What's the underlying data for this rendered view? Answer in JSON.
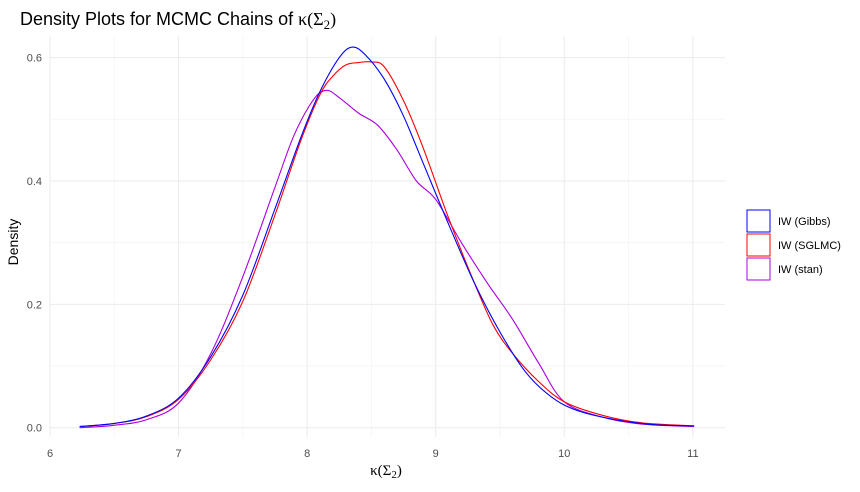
{
  "chart_data": {
    "type": "line",
    "title": {
      "prefix": "Density Plots for MCMC Chains of ",
      "symbol": "κ",
      "open": "(",
      "sigma": "Σ",
      "sub": "2",
      "close": ")"
    },
    "xlabel": {
      "symbol": "κ",
      "open": "(",
      "sigma": "Σ",
      "sub": "2",
      "close": ")"
    },
    "ylabel": "Density",
    "xlim": [
      6,
      11.25
    ],
    "ylim": [
      -0.015,
      0.635
    ],
    "x_ticks": [
      "6",
      "7",
      "8",
      "9",
      "10",
      "11"
    ],
    "x_tick_values": [
      6,
      7,
      8,
      9,
      10,
      11
    ],
    "y_ticks": [
      "0.0",
      "0.2",
      "0.4",
      "0.6"
    ],
    "y_tick_values": [
      0,
      0.2,
      0.4,
      0.6
    ],
    "grid": true,
    "legend_position": "right",
    "series": [
      {
        "name": "IW (Gibbs)",
        "color": "#0000ff",
        "x": [
          6.23,
          6.5,
          6.75,
          7.0,
          7.25,
          7.5,
          7.75,
          7.95,
          8.1,
          8.25,
          8.35,
          8.45,
          8.6,
          8.75,
          8.9,
          9.1,
          9.3,
          9.5,
          9.7,
          9.9,
          10.1,
          10.4,
          10.7,
          11.01
        ],
        "y": [
          0.002,
          0.007,
          0.019,
          0.048,
          0.115,
          0.215,
          0.355,
          0.47,
          0.545,
          0.6,
          0.617,
          0.605,
          0.565,
          0.505,
          0.43,
          0.33,
          0.235,
          0.155,
          0.09,
          0.05,
          0.028,
          0.013,
          0.005,
          0.003
        ]
      },
      {
        "name": "IW (SGLMC)",
        "color": "#ff0000",
        "x": [
          6.23,
          6.5,
          6.75,
          7.0,
          7.25,
          7.5,
          7.75,
          7.95,
          8.1,
          8.2,
          8.3,
          8.4,
          8.5,
          8.6,
          8.75,
          8.9,
          9.1,
          9.3,
          9.45,
          9.6,
          9.8,
          10.0,
          10.3,
          10.6,
          11.01
        ],
        "y": [
          0.002,
          0.007,
          0.018,
          0.046,
          0.11,
          0.205,
          0.345,
          0.465,
          0.54,
          0.57,
          0.588,
          0.592,
          0.593,
          0.585,
          0.53,
          0.455,
          0.34,
          0.235,
          0.165,
          0.12,
          0.075,
          0.042,
          0.02,
          0.008,
          0.003
        ]
      },
      {
        "name": "IW (stan)",
        "color": "#aa00dd",
        "x": [
          6.23,
          6.5,
          6.75,
          7.0,
          7.25,
          7.5,
          7.75,
          7.9,
          8.05,
          8.15,
          8.25,
          8.4,
          8.55,
          8.7,
          8.85,
          9.0,
          9.2,
          9.4,
          9.6,
          9.8,
          10.0,
          10.3,
          10.6,
          11.01
        ],
        "y": [
          0.0,
          0.004,
          0.013,
          0.04,
          0.12,
          0.245,
          0.39,
          0.475,
          0.532,
          0.547,
          0.535,
          0.51,
          0.49,
          0.45,
          0.4,
          0.37,
          0.3,
          0.235,
          0.175,
          0.105,
          0.042,
          0.017,
          0.006,
          0.002
        ]
      }
    ]
  }
}
